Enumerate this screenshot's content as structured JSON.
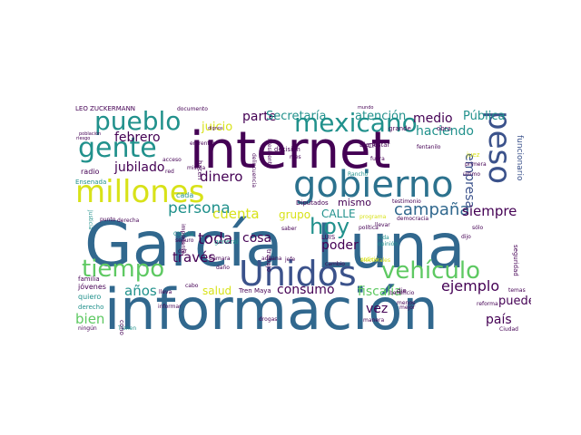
{
  "palette": {
    "dark_purple": "#440154",
    "indigo": "#3b528b",
    "steel": "#31688e",
    "blue": "#2c728e",
    "teal": "#21918c",
    "sea": "#23a884",
    "green": "#5ec962",
    "yellow_green": "#addc30",
    "yellow": "#d8e219",
    "grey_purple": "#46337e"
  },
  "words": [
    {
      "text": "información",
      "color": "steel"
    },
    {
      "text": "García",
      "color": "steel"
    },
    {
      "text": "Luna",
      "color": "steel"
    },
    {
      "text": "internet",
      "color": "dark_purple"
    },
    {
      "text": "gobierno",
      "color": "blue"
    },
    {
      "text": "millones",
      "color": "yellow"
    },
    {
      "text": "Unidos",
      "color": "indigo"
    },
    {
      "text": "gente",
      "color": "teal"
    },
    {
      "text": "pueblo",
      "color": "teal"
    },
    {
      "text": "mexicano",
      "color": "teal"
    },
    {
      "text": "tiempo",
      "color": "green"
    },
    {
      "text": "vehículo",
      "color": "green"
    },
    {
      "text": "peso",
      "color": "indigo"
    },
    {
      "text": "hoy",
      "color": "teal"
    },
    {
      "text": "campaña",
      "color": "steel"
    },
    {
      "text": "persona",
      "color": "teal"
    },
    {
      "text": "cuenta",
      "color": "yellow"
    },
    {
      "text": "dinero",
      "color": "dark_purple"
    },
    {
      "text": "parte",
      "color": "dark_purple"
    },
    {
      "text": "Secretaría",
      "color": "teal"
    },
    {
      "text": "atención",
      "color": "teal"
    },
    {
      "text": "medio",
      "color": "dark_purple"
    },
    {
      "text": "Pública",
      "color": "teal"
    },
    {
      "text": "haciendo",
      "color": "teal"
    },
    {
      "text": "juicio",
      "color": "yellow"
    },
    {
      "text": "febrero",
      "color": "dark_purple"
    },
    {
      "text": "jubilado",
      "color": "dark_purple"
    },
    {
      "text": "empresa",
      "color": "indigo"
    },
    {
      "text": "siempre",
      "color": "dark_purple"
    },
    {
      "text": "toda",
      "color": "dark_purple"
    },
    {
      "text": "cosa",
      "color": "dark_purple"
    },
    {
      "text": "través",
      "color": "dark_purple"
    },
    {
      "text": "años",
      "color": "teal"
    },
    {
      "text": "salud",
      "color": "yellow"
    },
    {
      "text": "consumo",
      "color": "dark_purple"
    },
    {
      "text": "fiscalía",
      "color": "green"
    },
    {
      "text": "ejemplo",
      "color": "dark_purple"
    },
    {
      "text": "pueden",
      "color": "dark_purple"
    },
    {
      "text": "país",
      "color": "dark_purple"
    },
    {
      "text": "bien",
      "color": "green"
    },
    {
      "text": "vez",
      "color": "dark_purple"
    },
    {
      "text": "poder",
      "color": "dark_purple"
    },
    {
      "text": "grupo",
      "color": "yellow"
    },
    {
      "text": "CALLE",
      "color": "teal"
    },
    {
      "text": "mismo",
      "color": "dark_purple"
    },
    {
      "text": "LEO ZUCKERMANN",
      "color": "dark_purple"
    },
    {
      "text": "documento",
      "color": "dark_purple"
    },
    {
      "text": "Tren Maya",
      "color": "dark_purple"
    },
    {
      "text": "Diputados",
      "color": "dark_purple"
    },
    {
      "text": "Bienestar",
      "color": "dark_purple"
    },
    {
      "text": "decisión",
      "color": "dark_purple"
    },
    {
      "text": "trabajo",
      "color": "dark_purple"
    },
    {
      "text": "general",
      "color": "teal"
    },
    {
      "text": "mundo",
      "color": "dark_purple"
    },
    {
      "text": "grande",
      "color": "dark_purple"
    },
    {
      "text": "obra",
      "color": "dark_purple"
    },
    {
      "text": "funcionario",
      "color": "indigo"
    },
    {
      "text": "fentanilo",
      "color": "dark_purple"
    },
    {
      "text": "juez",
      "color": "yellow"
    },
    {
      "text": "primera",
      "color": "dark_purple"
    },
    {
      "text": "último",
      "color": "dark_purple"
    },
    {
      "text": "testimonio",
      "color": "dark_purple"
    },
    {
      "text": "programa",
      "color": "yellow"
    },
    {
      "text": "democracia",
      "color": "dark_purple"
    },
    {
      "text": "sólo",
      "color": "dark_purple"
    },
    {
      "text": "política",
      "color": "dark_purple"
    },
    {
      "text": "opinión",
      "color": "teal"
    },
    {
      "text": "vida",
      "color": "teal"
    },
    {
      "text": "llevar",
      "color": "dark_purple"
    },
    {
      "text": "dijo",
      "color": "dark_purple"
    },
    {
      "text": "seguridad",
      "color": "dark_purple"
    },
    {
      "text": "saber",
      "color": "dark_purple"
    },
    {
      "text": "LUIS",
      "color": "dark_purple"
    },
    {
      "text": "cambio",
      "color": "dark_purple"
    },
    {
      "text": "Cámara",
      "color": "dark_purple"
    },
    {
      "text": "aduana",
      "color": "dark_purple"
    },
    {
      "text": "jefe",
      "color": "dark_purple"
    },
    {
      "text": "daño",
      "color": "dark_purple"
    },
    {
      "text": "electorales",
      "color": "yellow"
    },
    {
      "text": "noticia",
      "color": "yellow"
    },
    {
      "text": "beneficio",
      "color": "dark_purple"
    },
    {
      "text": "drogas",
      "color": "dark_purple"
    },
    {
      "text": "dio",
      "color": "dark_purple"
    },
    {
      "text": "mejor",
      "color": "dark_purple"
    },
    {
      "text": "menos",
      "color": "dark_purple"
    },
    {
      "text": "Ciudad",
      "color": "dark_purple"
    },
    {
      "text": "reforma",
      "color": "dark_purple"
    },
    {
      "text": "temas",
      "color": "dark_purple"
    },
    {
      "text": "radio",
      "color": "dark_purple"
    },
    {
      "text": "Ensenada",
      "color": "teal"
    },
    {
      "text": "cada",
      "color": "teal"
    },
    {
      "text": "misma",
      "color": "dark_purple"
    },
    {
      "text": "derecha",
      "color": "dark_purple"
    },
    {
      "text": "punto",
      "color": "dark_purple"
    },
    {
      "text": "Claudia",
      "color": "teal"
    },
    {
      "text": "seguro",
      "color": "dark_purple"
    },
    {
      "text": "importante",
      "color": "dark_purple"
    },
    {
      "text": "dar",
      "color": "dark_purple"
    },
    {
      "text": "jóvenes",
      "color": "dark_purple"
    },
    {
      "text": "quiero",
      "color": "teal"
    },
    {
      "text": "familia",
      "color": "dark_purple"
    },
    {
      "text": "derecho",
      "color": "teal"
    },
    {
      "text": "ningún",
      "color": "dark_purple"
    },
    {
      "text": "población",
      "color": "dark_purple"
    },
    {
      "text": "Justicia",
      "color": "teal"
    },
    {
      "text": "informar",
      "color": "dark_purple"
    },
    {
      "text": "lleva",
      "color": "dark_purple"
    },
    {
      "text": "cabo",
      "color": "dark_purple"
    },
    {
      "text": "acceso",
      "color": "dark_purple"
    },
    {
      "text": "red",
      "color": "dark_purple"
    },
    {
      "text": "CFE",
      "color": "dark_purple"
    },
    {
      "text": "fuera",
      "color": "dark_purple"
    },
    {
      "text": "manera",
      "color": "dark_purple"
    },
    {
      "text": "enfrentar",
      "color": "dark_purple"
    },
    {
      "text": "dignos",
      "color": "dark_purple"
    },
    {
      "text": "riesgo",
      "color": "dark_purple"
    },
    {
      "text": "mes",
      "color": "dark_purple"
    },
    {
      "text": "hacen",
      "color": "dark_purple"
    },
    {
      "text": "Presidente",
      "color": "dark_purple"
    },
    {
      "text": "delincuencia",
      "color": "dark_purple"
    },
    {
      "text": "Tienen",
      "color": "teal"
    },
    {
      "text": "Rancho",
      "color": "teal"
    },
    {
      "text": "conocer",
      "color": "dark_purple"
    }
  ]
}
